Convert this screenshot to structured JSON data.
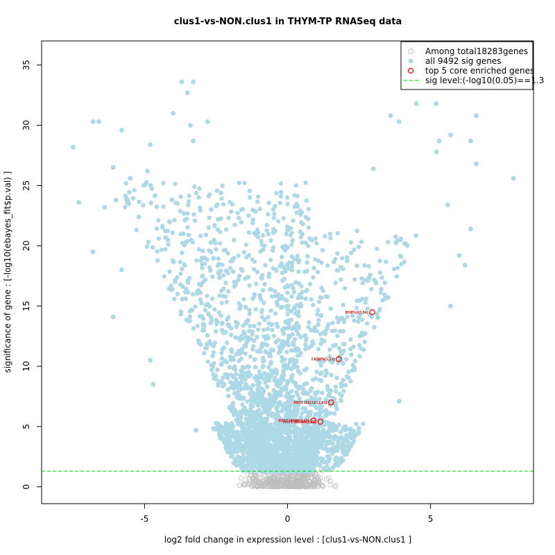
{
  "chart_data": {
    "type": "scatter",
    "title": "clus1-vs-NON.clus1 in THYM-TP RNASeq data",
    "xlabel": "log2 fold change in expression level : [clus1-vs-NON.clus1 ]",
    "ylabel": "significance of gene : [-log10(ebayes_fit$p.val) ]",
    "xlim": [
      -8.6,
      8.6
    ],
    "ylim": [
      -1.4,
      37.0
    ],
    "xticks": [
      -5,
      0,
      5
    ],
    "yticks": [
      0,
      5,
      10,
      15,
      20,
      25,
      30,
      35
    ],
    "sig_level": 1.3,
    "colors": {
      "background_points": "#bebebe",
      "sig_points": "#add8e6",
      "core_genes": "#ff0000",
      "sig_line": "#00cc00"
    },
    "legend": {
      "position": "top-right",
      "entries": [
        "Among total18283genes",
        "all 9492 sig genes",
        "top 5 core enriched genes",
        "sig level:(-log10(0.05)==1.3"
      ]
    },
    "core_genes": [
      {
        "label": "HSPA2(7.84)",
        "x": 2.96,
        "y": 14.5
      },
      {
        "label": "FKBP6(3.53)",
        "x": 1.79,
        "y": 10.6
      },
      {
        "label": "HIST1H2AE(2.92)",
        "x": 1.52,
        "y": 7.0
      },
      {
        "label": "HIST1H4H(2.13)",
        "x": 0.9,
        "y": 5.5
      },
      {
        "label": "HIST1H2BD(2.01)",
        "x": 1.15,
        "y": 5.4
      }
    ],
    "notable_points": [
      {
        "x": -7.5,
        "y": 28.2
      },
      {
        "x": -7.3,
        "y": 23.6
      },
      {
        "x": -6.8,
        "y": 30.3
      },
      {
        "x": -6.6,
        "y": 30.3
      },
      {
        "x": -6.8,
        "y": 19.5
      },
      {
        "x": -6.4,
        "y": 23.2
      },
      {
        "x": -6.1,
        "y": 26.5
      },
      {
        "x": -6.0,
        "y": 23.8
      },
      {
        "x": -5.8,
        "y": 29.6
      },
      {
        "x": -5.8,
        "y": 18.0
      },
      {
        "x": -5.5,
        "y": 25.6
      },
      {
        "x": -5.2,
        "y": 22.4
      },
      {
        "x": -4.8,
        "y": 28.4
      },
      {
        "x": -4.9,
        "y": 26.2
      },
      {
        "x": -4.0,
        "y": 31.0
      },
      {
        "x": -3.7,
        "y": 33.6
      },
      {
        "x": -3.3,
        "y": 33.6
      },
      {
        "x": -3.5,
        "y": 32.7
      },
      {
        "x": -3.4,
        "y": 30.0
      },
      {
        "x": -3.3,
        "y": 28.7
      },
      {
        "x": -2.8,
        "y": 30.3
      },
      {
        "x": -6.1,
        "y": 14.1
      },
      {
        "x": -4.8,
        "y": 10.5
      },
      {
        "x": -4.7,
        "y": 8.5
      },
      {
        "x": -3.2,
        "y": 4.7
      },
      {
        "x": 7.9,
        "y": 25.6
      },
      {
        "x": 6.6,
        "y": 30.8
      },
      {
        "x": 6.6,
        "y": 26.8
      },
      {
        "x": 6.4,
        "y": 28.7
      },
      {
        "x": 6.4,
        "y": 21.4
      },
      {
        "x": 5.7,
        "y": 29.2
      },
      {
        "x": 5.2,
        "y": 31.8
      },
      {
        "x": 5.2,
        "y": 27.8
      },
      {
        "x": 5.3,
        "y": 28.7
      },
      {
        "x": 4.5,
        "y": 31.8
      },
      {
        "x": 3.9,
        "y": 30.3
      },
      {
        "x": 3.6,
        "y": 30.8
      },
      {
        "x": 3.0,
        "y": 26.4
      },
      {
        "x": 5.7,
        "y": 15.0
      },
      {
        "x": 5.6,
        "y": 23.4
      },
      {
        "x": 6.2,
        "y": 18.4
      },
      {
        "x": 6.0,
        "y": 19.2
      },
      {
        "x": 3.9,
        "y": 7.1
      }
    ]
  }
}
